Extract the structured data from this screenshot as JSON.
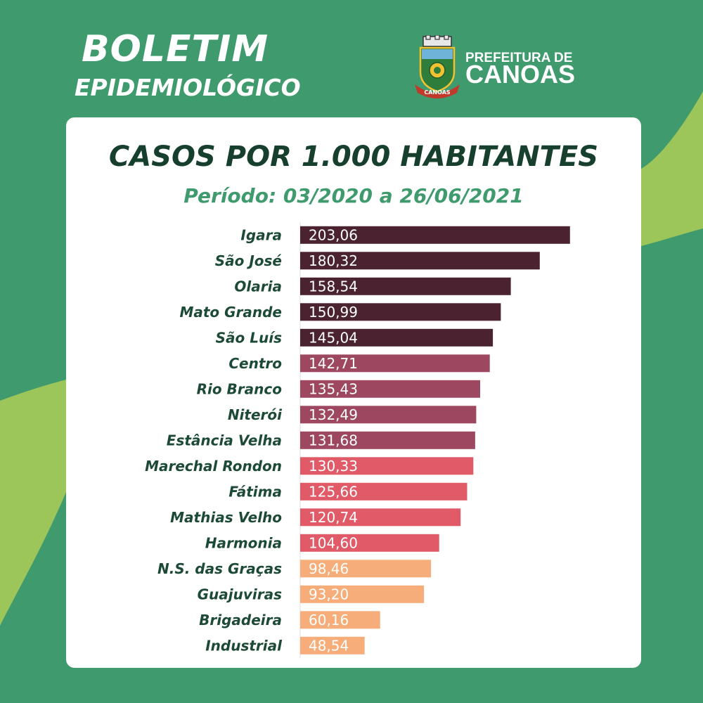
{
  "header": {
    "title": "BOLETIM",
    "subtitle": "EPIDEMIOLÓGICO"
  },
  "logo": {
    "line1": "PREFEITURA DE",
    "line2": "CANOAS",
    "ribbon": "CANOAS"
  },
  "colors": {
    "background": "#3f9a6d",
    "accent_light": "#9dc65a",
    "card": "#ffffff",
    "title": "#163f2e",
    "subtitle": "#3f9a6d",
    "label": "#1c4a36"
  },
  "chart_data": {
    "type": "bar",
    "orientation": "horizontal",
    "title": "CASOS POR 1.000 HABITANTES",
    "subtitle": "Período: 03/2020 a 26/06/2021",
    "xlim": [
      0,
      210
    ],
    "grid": false,
    "categories": [
      "Igara",
      "São José",
      "Olaria",
      "Mato Grande",
      "São Luís",
      "Centro",
      "Rio Branco",
      "Niterói",
      "Estância Velha",
      "Marechal Rondon",
      "Fátima",
      "Mathias Velho",
      "Harmonia",
      "N.S. das Graças",
      "Guajuviras",
      "Brigadeira",
      "Industrial"
    ],
    "values": [
      203.06,
      180.32,
      158.54,
      150.99,
      145.04,
      142.71,
      135.43,
      132.49,
      131.68,
      130.33,
      125.66,
      120.74,
      104.6,
      98.46,
      93.2,
      60.16,
      48.54
    ],
    "value_labels": [
      "203,06",
      "180,32",
      "158,54",
      "150,99",
      "145,04",
      "142,71",
      "135,43",
      "132,49",
      "131,68",
      "130,33",
      "125,66",
      "120,74",
      "104,60",
      "98,46",
      "93,20",
      "60,16",
      "48,54"
    ],
    "bar_colors": [
      "#4b2230",
      "#4b2230",
      "#4b2230",
      "#4b2230",
      "#4b2230",
      "#9d4860",
      "#9d4860",
      "#9d4860",
      "#9d4860",
      "#e05a68",
      "#e05a68",
      "#e05a68",
      "#e05a68",
      "#f6ad79",
      "#f6ad79",
      "#f6ad79",
      "#f6ad79"
    ]
  }
}
